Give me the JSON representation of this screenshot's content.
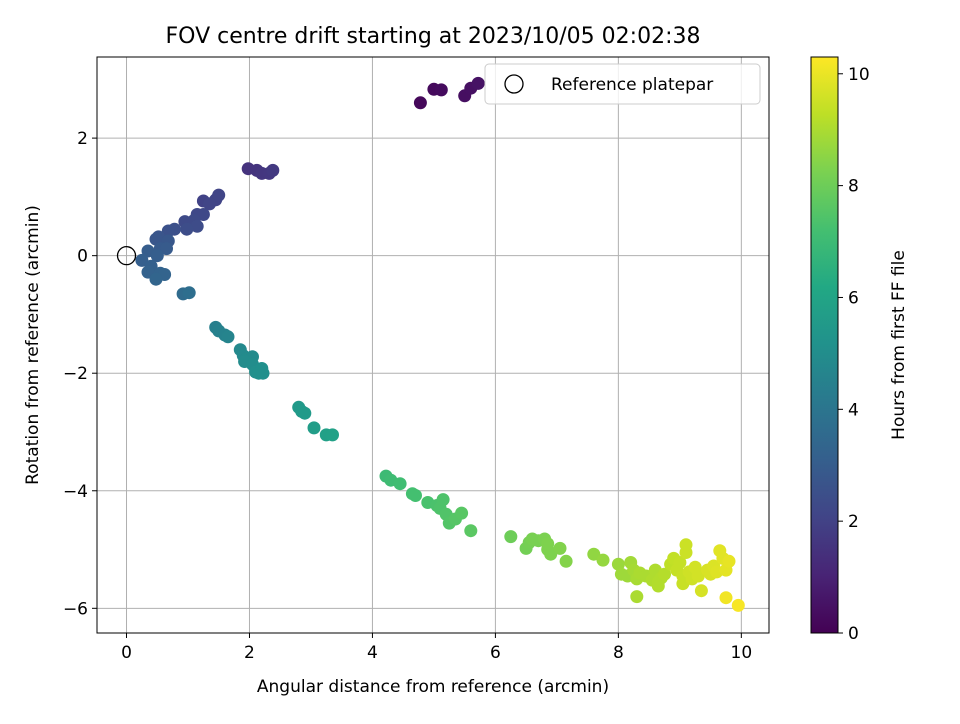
{
  "chart_data": {
    "type": "scatter",
    "title": "FOV centre drift starting at 2023/10/05 02:02:38",
    "xlabel": "Angular distance from reference (arcmin)",
    "ylabel": "Rotation from reference (arcmin)",
    "xlim": [
      -0.48,
      10.45
    ],
    "ylim": [
      -6.42,
      3.38
    ],
    "xticks": [
      0,
      2,
      4,
      6,
      8,
      10
    ],
    "yticks": [
      -6,
      -4,
      -2,
      0,
      2
    ],
    "grid": true,
    "legend": {
      "position": "top-right",
      "entries": [
        "Reference platepar"
      ]
    },
    "reference_point": {
      "x": 0,
      "y": 0
    },
    "colorbar": {
      "label": "Hours from first FF file",
      "range": [
        0,
        10.3
      ],
      "ticks": [
        0,
        2,
        4,
        6,
        8,
        10
      ],
      "colormap": "viridis"
    },
    "points": [
      [
        4.78,
        2.6,
        0.2
      ],
      [
        5.0,
        2.83,
        0.25
      ],
      [
        5.12,
        2.82,
        0.3
      ],
      [
        5.5,
        2.72,
        0.4
      ],
      [
        5.6,
        2.85,
        0.45
      ],
      [
        5.72,
        2.93,
        0.5
      ],
      [
        1.98,
        1.48,
        1.5
      ],
      [
        2.12,
        1.45,
        1.55
      ],
      [
        2.2,
        1.4,
        1.6
      ],
      [
        2.32,
        1.4,
        1.65
      ],
      [
        2.38,
        1.45,
        1.7
      ],
      [
        1.25,
        0.93,
        2.0
      ],
      [
        1.45,
        0.95,
        2.05
      ],
      [
        1.5,
        1.03,
        2.1
      ],
      [
        1.35,
        0.88,
        2.1
      ],
      [
        1.15,
        0.7,
        2.2
      ],
      [
        1.25,
        0.7,
        2.2
      ],
      [
        0.95,
        0.58,
        2.3
      ],
      [
        1.1,
        0.6,
        2.3
      ],
      [
        1.15,
        0.5,
        2.35
      ],
      [
        0.98,
        0.45,
        2.4
      ],
      [
        0.78,
        0.45,
        2.5
      ],
      [
        0.68,
        0.42,
        2.55
      ],
      [
        0.52,
        0.32,
        2.7
      ],
      [
        0.48,
        0.28,
        2.75
      ],
      [
        0.68,
        0.25,
        2.8
      ],
      [
        0.55,
        0.12,
        2.9
      ],
      [
        0.65,
        0.12,
        2.95
      ],
      [
        0.35,
        0.08,
        3.0
      ],
      [
        0.5,
        0.0,
        3.05
      ],
      [
        0.25,
        -0.08,
        3.1
      ],
      [
        0.4,
        -0.18,
        3.15
      ],
      [
        0.35,
        -0.28,
        3.2
      ],
      [
        0.55,
        -0.3,
        3.25
      ],
      [
        0.62,
        -0.32,
        3.3
      ],
      [
        0.48,
        -0.4,
        3.35
      ],
      [
        0.92,
        -0.65,
        3.6
      ],
      [
        1.02,
        -0.63,
        3.7
      ],
      [
        1.45,
        -1.22,
        4.4
      ],
      [
        1.5,
        -1.28,
        4.5
      ],
      [
        1.6,
        -1.35,
        4.55
      ],
      [
        1.65,
        -1.38,
        4.6
      ],
      [
        1.85,
        -1.6,
        4.8
      ],
      [
        1.9,
        -1.7,
        4.85
      ],
      [
        1.95,
        -1.75,
        4.9
      ],
      [
        2.05,
        -1.72,
        4.9
      ],
      [
        1.92,
        -1.8,
        4.95
      ],
      [
        2.05,
        -1.85,
        5.0
      ],
      [
        2.1,
        -1.98,
        5.05
      ],
      [
        2.2,
        -1.92,
        5.1
      ],
      [
        2.15,
        -2.0,
        5.1
      ],
      [
        2.22,
        -2.0,
        5.1
      ],
      [
        2.8,
        -2.58,
        5.5
      ],
      [
        2.85,
        -2.65,
        5.55
      ],
      [
        2.9,
        -2.68,
        5.55
      ],
      [
        3.05,
        -2.93,
        5.7
      ],
      [
        3.25,
        -3.05,
        5.8
      ],
      [
        3.35,
        -3.05,
        5.85
      ],
      [
        4.22,
        -3.75,
        7.0
      ],
      [
        4.3,
        -3.82,
        7.05
      ],
      [
        4.45,
        -3.88,
        7.1
      ],
      [
        4.65,
        -4.05,
        7.2
      ],
      [
        4.7,
        -4.08,
        7.2
      ],
      [
        4.9,
        -4.2,
        7.3
      ],
      [
        5.05,
        -4.25,
        7.35
      ],
      [
        5.1,
        -4.3,
        7.4
      ],
      [
        5.15,
        -4.15,
        7.4
      ],
      [
        5.2,
        -4.4,
        7.45
      ],
      [
        5.25,
        -4.55,
        7.5
      ],
      [
        5.35,
        -4.48,
        7.55
      ],
      [
        5.45,
        -4.38,
        7.6
      ],
      [
        5.6,
        -4.68,
        7.65
      ],
      [
        6.25,
        -4.78,
        8.0
      ],
      [
        6.5,
        -4.98,
        8.1
      ],
      [
        6.55,
        -4.88,
        8.15
      ],
      [
        6.6,
        -4.82,
        8.2
      ],
      [
        6.7,
        -4.85,
        8.2
      ],
      [
        6.8,
        -4.82,
        8.25
      ],
      [
        6.85,
        -4.9,
        8.3
      ],
      [
        6.85,
        -5.0,
        8.3
      ],
      [
        6.9,
        -5.08,
        8.3
      ],
      [
        7.05,
        -4.98,
        8.35
      ],
      [
        7.15,
        -5.2,
        8.4
      ],
      [
        7.6,
        -5.08,
        8.6
      ],
      [
        7.75,
        -5.18,
        8.65
      ],
      [
        8.0,
        -5.25,
        8.75
      ],
      [
        8.05,
        -5.42,
        8.8
      ],
      [
        8.15,
        -5.45,
        8.8
      ],
      [
        8.2,
        -5.22,
        8.85
      ],
      [
        8.25,
        -5.35,
        8.9
      ],
      [
        8.3,
        -5.5,
        8.95
      ],
      [
        8.35,
        -5.4,
        9.0
      ],
      [
        8.45,
        -5.45,
        9.0
      ],
      [
        8.55,
        -5.52,
        9.05
      ],
      [
        8.6,
        -5.35,
        9.05
      ],
      [
        8.65,
        -5.55,
        9.1
      ],
      [
        8.7,
        -5.48,
        9.1
      ],
      [
        8.75,
        -5.42,
        9.15
      ],
      [
        8.3,
        -5.8,
        9.0
      ],
      [
        8.65,
        -5.62,
        9.1
      ],
      [
        8.85,
        -5.25,
        9.3
      ],
      [
        8.9,
        -5.15,
        9.35
      ],
      [
        8.95,
        -5.35,
        9.4
      ],
      [
        9.0,
        -5.22,
        9.4
      ],
      [
        9.05,
        -5.45,
        9.45
      ],
      [
        9.05,
        -5.58,
        9.45
      ],
      [
        9.1,
        -5.05,
        9.5
      ],
      [
        9.1,
        -4.92,
        9.5
      ],
      [
        9.15,
        -5.38,
        9.55
      ],
      [
        9.2,
        -5.5,
        9.55
      ],
      [
        9.25,
        -5.3,
        9.6
      ],
      [
        9.3,
        -5.45,
        9.6
      ],
      [
        9.35,
        -5.7,
        9.65
      ],
      [
        9.45,
        -5.35,
        9.7
      ],
      [
        9.5,
        -5.42,
        9.7
      ],
      [
        9.55,
        -5.28,
        9.75
      ],
      [
        9.6,
        -5.38,
        9.8
      ],
      [
        9.65,
        -5.02,
        9.85
      ],
      [
        9.7,
        -5.15,
        9.85
      ],
      [
        9.75,
        -5.35,
        9.9
      ],
      [
        9.8,
        -5.2,
        9.95
      ],
      [
        9.75,
        -5.82,
        10.1
      ],
      [
        9.95,
        -5.95,
        10.2
      ]
    ]
  }
}
